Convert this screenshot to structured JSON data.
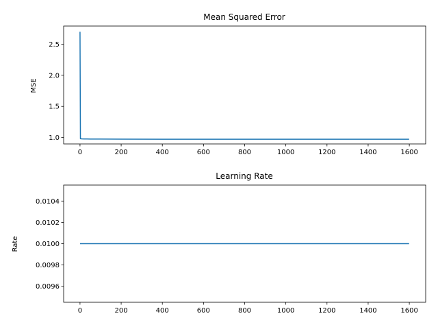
{
  "chart_data": [
    {
      "type": "line",
      "title": "Mean Squared Error",
      "xlabel": "",
      "ylabel": "MSE",
      "xlim": [
        -79.5,
        1679.5
      ],
      "ylim": [
        0.896,
        2.792
      ],
      "xticks": [
        0,
        200,
        400,
        600,
        800,
        1000,
        1200,
        1400,
        1600
      ],
      "yticks": [
        1.0,
        1.5,
        2.0,
        2.5
      ],
      "ytick_labels": [
        "1.0",
        "1.5",
        "2.0",
        "2.5"
      ],
      "grid": false,
      "color": "#1f77b4",
      "x": [
        0,
        2,
        5,
        10,
        20,
        50,
        100,
        200,
        400,
        800,
        1200,
        1599
      ],
      "y": [
        2.7,
        0.98,
        0.978,
        0.977,
        0.976,
        0.975,
        0.974,
        0.973,
        0.972,
        0.972,
        0.972,
        0.972
      ]
    },
    {
      "type": "line",
      "title": "Learning Rate",
      "xlabel": "",
      "ylabel": "Rate",
      "xlim": [
        -79.5,
        1679.5
      ],
      "ylim": [
        0.00945,
        0.01055
      ],
      "xticks": [
        0,
        200,
        400,
        600,
        800,
        1000,
        1200,
        1400,
        1600
      ],
      "yticks": [
        0.0096,
        0.0098,
        0.01,
        0.0102,
        0.0104
      ],
      "ytick_labels": [
        "0.0096",
        "0.0098",
        "0.0100",
        "0.0102",
        "0.0104"
      ],
      "grid": false,
      "color": "#1f77b4",
      "x": [
        0,
        1599
      ],
      "y": [
        0.01,
        0.01
      ]
    }
  ]
}
